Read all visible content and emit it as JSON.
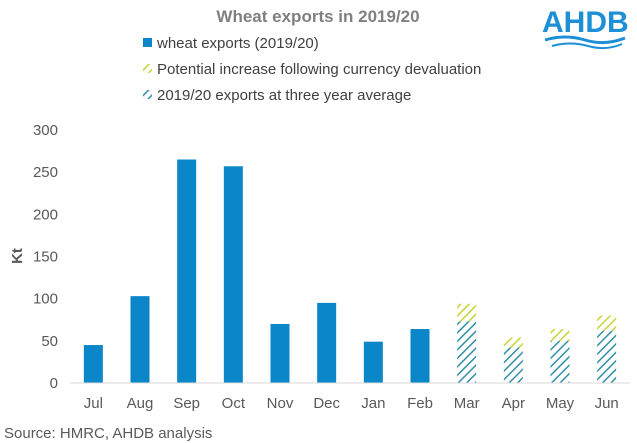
{
  "chart_data": {
    "type": "bar",
    "title": "Wheat exports in 2019/20",
    "xlabel": "",
    "ylabel": "Kt",
    "ylim": [
      0,
      300
    ],
    "yticks": [
      0,
      50,
      100,
      150,
      200,
      250,
      300
    ],
    "grid": false,
    "stacked": true,
    "categories": [
      "Jul",
      "Aug",
      "Sep",
      "Oct",
      "Nov",
      "Dec",
      "Jan",
      "Feb",
      "Mar",
      "Apr",
      "May",
      "Jun"
    ],
    "series": [
      {
        "name": "wheat exports (2019/20)",
        "style": "solid",
        "color": "#0b86c8",
        "values": [
          45,
          103,
          265,
          257,
          70,
          95,
          49,
          64,
          null,
          null,
          null,
          null
        ]
      },
      {
        "name": "2019/20 exports at three year average",
        "style": "hatch",
        "color": "#2f8fa6",
        "values": [
          null,
          null,
          null,
          null,
          null,
          null,
          null,
          null,
          73,
          42,
          50,
          62
        ]
      },
      {
        "name": "Potential increase following currency devaluation",
        "style": "hatch",
        "color": "#c8d435",
        "values": [
          null,
          null,
          null,
          null,
          null,
          null,
          null,
          null,
          21,
          12,
          14,
          18
        ]
      }
    ],
    "legend": [
      {
        "label": "wheat exports (2019/20)",
        "style": "solid",
        "color": "#0b86c8"
      },
      {
        "label": "Potential increase following currency devaluation",
        "style": "hatch",
        "color": "#c8d435"
      },
      {
        "label": "2019/20 exports at three year average",
        "style": "hatch",
        "color": "#2f8fa6"
      }
    ],
    "legend_position": "top"
  },
  "source": "Source: HMRC, AHDB analysis",
  "logo": {
    "text": "AHDB",
    "color": "#1d8fd6"
  }
}
